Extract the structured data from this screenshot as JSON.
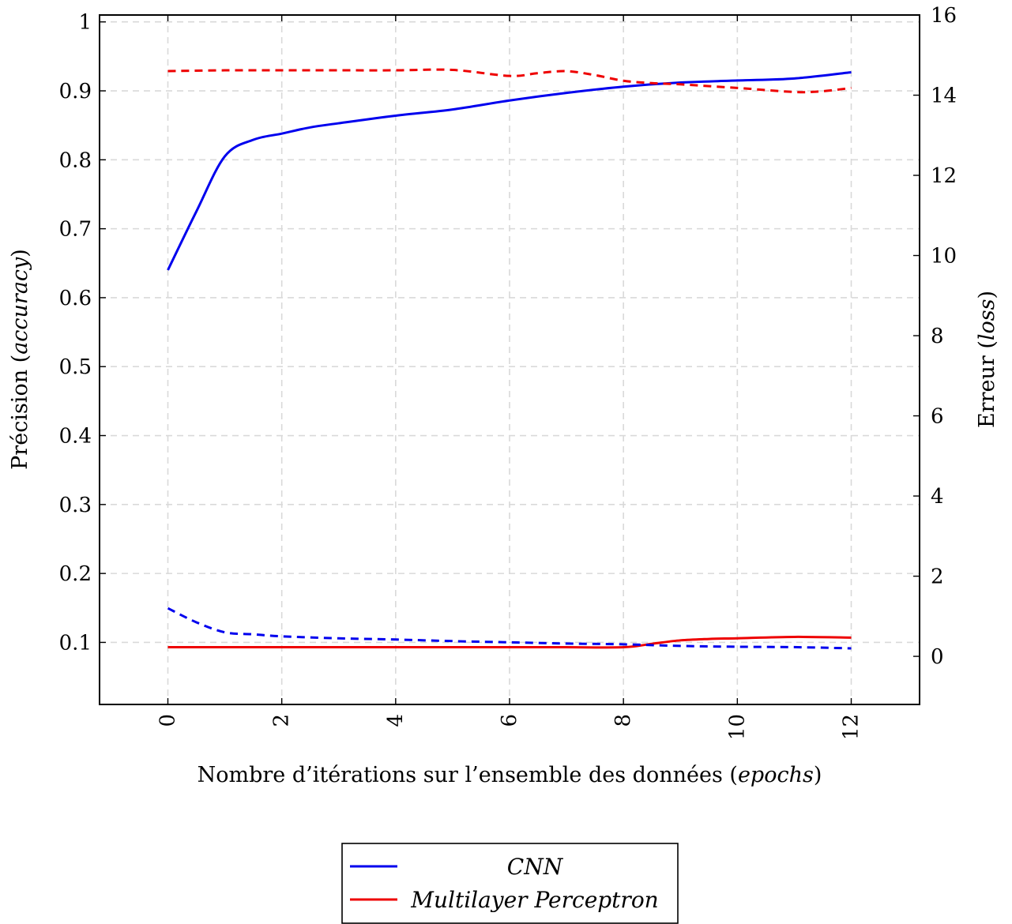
{
  "chart_data": {
    "type": "line",
    "xlabel": {
      "main": "Nombre d’itérations sur l’ensemble des données (",
      "em": "epochs",
      "end": ")"
    },
    "ylabel_left": {
      "main": "Précision (",
      "em": "accuracy",
      "end": ")"
    },
    "ylabel_right": {
      "main": "Erreur (",
      "em": "loss",
      "end": ")"
    },
    "xlim": [
      -1.2,
      13.2
    ],
    "ylim_left": [
      0.01,
      1.01
    ],
    "ylim_right": [
      -1.2,
      16.0
    ],
    "xticks": [
      "0",
      "2",
      "4",
      "6",
      "8",
      "10",
      "12"
    ],
    "yticks_left": [
      "0.1",
      "0.2",
      "0.3",
      "0.4",
      "0.5",
      "0.6",
      "0.7",
      "0.8",
      "0.9",
      "1"
    ],
    "yticks_right": [
      "0",
      "2",
      "4",
      "6",
      "8",
      "10",
      "12",
      "14",
      "16"
    ],
    "grid": true,
    "legend_position": "bottom-center",
    "series": [
      {
        "name": "CNN",
        "color": "#0000ee",
        "metric": "accuracy",
        "axis": "left",
        "style": "solid",
        "x": [
          0,
          0.5,
          1,
          1.5,
          2,
          2.5,
          3,
          4,
          5,
          6,
          7,
          8,
          9,
          10,
          11,
          12
        ],
        "y": [
          0.64,
          0.725,
          0.805,
          0.829,
          0.838,
          0.847,
          0.853,
          0.864,
          0.873,
          0.886,
          0.897,
          0.906,
          0.912,
          0.915,
          0.918,
          0.927
        ]
      },
      {
        "name": "Multilayer Perceptron",
        "color": "#ee0000",
        "metric": "accuracy",
        "axis": "left",
        "style": "solid",
        "x": [
          0,
          1,
          2,
          3,
          4,
          5,
          6,
          7,
          8,
          8.5,
          9,
          9.5,
          10,
          11,
          12
        ],
        "y": [
          0.093,
          0.093,
          0.093,
          0.093,
          0.093,
          0.093,
          0.093,
          0.093,
          0.093,
          0.098,
          0.103,
          0.105,
          0.106,
          0.108,
          0.107
        ]
      },
      {
        "name": "CNN",
        "color": "#0000ee",
        "metric": "loss",
        "axis": "right",
        "style": "dashed",
        "x": [
          0,
          0.5,
          1,
          1.5,
          2,
          3,
          4,
          5,
          6,
          7,
          8,
          9,
          10,
          11,
          12
        ],
        "y": [
          1.2,
          0.85,
          0.6,
          0.55,
          0.5,
          0.45,
          0.42,
          0.38,
          0.35,
          0.32,
          0.3,
          0.26,
          0.24,
          0.23,
          0.2
        ]
      },
      {
        "name": "Multilayer Perceptron",
        "color": "#ee0000",
        "metric": "loss",
        "axis": "right",
        "style": "dashed",
        "x": [
          0,
          1,
          2,
          3,
          4,
          5,
          6,
          6.5,
          7,
          7.5,
          8,
          8.5,
          9,
          10,
          11,
          11.5,
          12
        ],
        "y": [
          14.6,
          14.62,
          14.62,
          14.62,
          14.62,
          14.63,
          14.48,
          14.55,
          14.6,
          14.5,
          14.36,
          14.3,
          14.27,
          14.18,
          14.08,
          14.1,
          14.18
        ]
      }
    ],
    "legend": [
      {
        "name": "CNN",
        "color": "#0000ee"
      },
      {
        "name": "Multilayer Perceptron",
        "color": "#ee0000"
      }
    ]
  }
}
